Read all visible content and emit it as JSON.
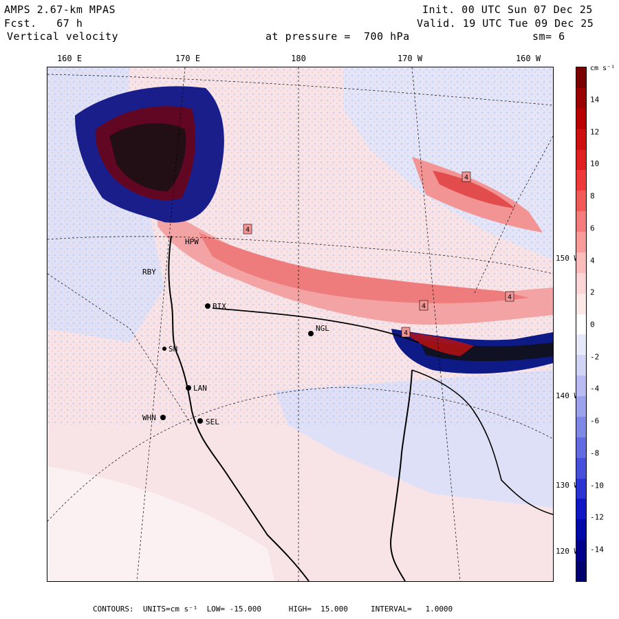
{
  "header": {
    "model": "AMPS 2.67-km MPAS",
    "fcst": "Fcst.   67 h",
    "field": "Vertical velocity",
    "level": "at pressure =  700 hPa",
    "init": "Init. 00 UTC Sun 07 Dec 25",
    "valid": "Valid. 19 UTC Tue 09 Dec 25",
    "smooth": "sm= 6"
  },
  "lon_labels": [
    "160 E",
    "170 E",
    "180",
    "170 W",
    "160 W"
  ],
  "lat_labels": [
    "150 W",
    "140 W",
    "130 W",
    "120 W"
  ],
  "stations": [
    {
      "id": "HPW",
      "label": "HPW"
    },
    {
      "id": "RBY",
      "label": "RBY"
    },
    {
      "id": "BIX",
      "label": "BIX"
    },
    {
      "id": "NGL",
      "label": "NGL"
    },
    {
      "id": "SN",
      "label": "SN"
    },
    {
      "id": "LAN",
      "label": "LAN"
    },
    {
      "id": "WHN",
      "label": "WHN"
    },
    {
      "id": "SEL",
      "label": "SEL"
    }
  ],
  "contour_labels": [
    "4",
    "4",
    "4",
    "4",
    "4"
  ],
  "colorbar": {
    "unit": "cm s⁻¹",
    "ticks": [
      "14",
      "12",
      "10",
      "8",
      "6",
      "4",
      "2",
      "0",
      "-2",
      "-4",
      "-6",
      "-8",
      "-10",
      "-12",
      "-14"
    ],
    "colors": [
      "#7a0000",
      "#9a0000",
      "#b80000",
      "#cf1010",
      "#e02020",
      "#ee3a3a",
      "#f25a5a",
      "#f57c7c",
      "#f89c9c",
      "#fbbcbc",
      "#fcd6d6",
      "#fde8e8",
      "#ffffff",
      "#e8e8fb",
      "#d2d4f6",
      "#b8bcf2",
      "#9ca2ec",
      "#8088e6",
      "#626ce0",
      "#4650da",
      "#2a34d2",
      "#1018c4",
      "#0008a8",
      "#00008a",
      "#00006e"
    ]
  },
  "footer": "CONTOURS:  UNITS=cm s⁻¹  LOW= -15.000      HIGH=  15.000     INTERVAL=   1.0000"
}
